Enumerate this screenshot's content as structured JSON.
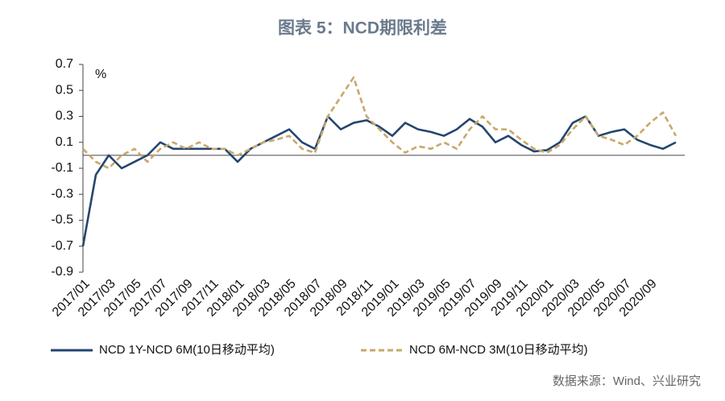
{
  "chart_data": {
    "type": "line",
    "title": "图表 5：NCD期限利差",
    "y_label": "%",
    "source": "数据来源：Wind、兴业研究",
    "categories": [
      "2017/01",
      null,
      "2017/03",
      null,
      "2017/05",
      null,
      "2017/07",
      null,
      "2017/09",
      null,
      "2017/11",
      null,
      "2018/01",
      null,
      "2018/03",
      null,
      "2018/05",
      null,
      "2018/07",
      null,
      "2018/09",
      null,
      "2018/11",
      null,
      "2019/01",
      null,
      "2019/03",
      null,
      "2019/05",
      null,
      "2019/07",
      null,
      "2019/09",
      null,
      "2019/11",
      null,
      "2020/01",
      null,
      "2020/03",
      null,
      "2020/05",
      null,
      "2020/07",
      null,
      "2020/09",
      null,
      null
    ],
    "series": [
      {
        "name": "NCD 1Y-NCD 6M(10日移动平均)",
        "color": "#24466e",
        "dash": false,
        "values": [
          -0.7,
          -0.15,
          0.0,
          -0.1,
          -0.05,
          0.0,
          0.1,
          0.05,
          0.05,
          0.05,
          0.05,
          0.05,
          -0.05,
          0.05,
          0.1,
          0.15,
          0.2,
          0.1,
          0.05,
          0.3,
          0.2,
          0.25,
          0.27,
          0.22,
          0.15,
          0.25,
          0.2,
          0.18,
          0.15,
          0.2,
          0.28,
          0.22,
          0.1,
          0.15,
          0.08,
          0.03,
          0.04,
          0.1,
          0.25,
          0.3,
          0.15,
          0.18,
          0.2,
          0.12,
          0.08,
          0.05,
          0.1
        ]
      },
      {
        "name": "NCD 6M-NCD 3M(10日移动平均)",
        "color": "#c8a86b",
        "dash": true,
        "values": [
          0.05,
          -0.05,
          -0.1,
          0.0,
          0.05,
          -0.05,
          0.05,
          0.1,
          0.05,
          0.1,
          0.05,
          0.05,
          0.0,
          0.05,
          0.1,
          0.12,
          0.15,
          0.05,
          0.02,
          0.3,
          0.45,
          0.6,
          0.3,
          0.2,
          0.1,
          0.02,
          0.07,
          0.05,
          0.1,
          0.05,
          0.2,
          0.3,
          0.2,
          0.2,
          0.12,
          0.05,
          0.02,
          0.08,
          0.2,
          0.3,
          0.15,
          0.12,
          0.08,
          0.15,
          0.25,
          0.33,
          0.15
        ]
      }
    ],
    "ylim": [
      -0.9,
      0.7
    ],
    "yticks": [
      -0.9,
      -0.7,
      -0.5,
      -0.3,
      -0.1,
      0.1,
      0.3,
      0.5,
      0.7
    ]
  }
}
